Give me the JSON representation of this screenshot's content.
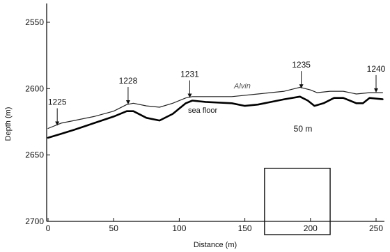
{
  "chart_data": {
    "type": "line",
    "title": "",
    "xlabel": "Distance (m)",
    "ylabel": "Depth (m)",
    "xlim": [
      0,
      255
    ],
    "ylim": [
      2700,
      2545
    ],
    "y_inverted": true,
    "x_ticks": [
      0,
      50,
      100,
      150,
      200,
      250
    ],
    "y_ticks": [
      2550,
      2600,
      2650,
      2700
    ],
    "grid": false,
    "series": [
      {
        "name": "Alvin",
        "color": "#222222",
        "x": [
          0,
          10,
          20,
          35,
          50,
          60,
          65,
          75,
          85,
          95,
          105,
          110,
          120,
          140,
          160,
          180,
          192,
          200,
          205,
          215,
          225,
          235,
          245,
          255
        ],
        "y": [
          2630,
          2626,
          2624,
          2621,
          2617,
          2612,
          2611,
          2613,
          2614,
          2611,
          2607,
          2606,
          2606,
          2606,
          2604,
          2602,
          2599,
          2601,
          2603,
          2602,
          2602,
          2604,
          2603,
          2603
        ]
      },
      {
        "name": "sea floor",
        "color": "#000000",
        "x": [
          0,
          10,
          20,
          35,
          50,
          60,
          65,
          75,
          85,
          95,
          105,
          110,
          120,
          140,
          150,
          160,
          180,
          192,
          198,
          203,
          210,
          218,
          225,
          235,
          240,
          245,
          255
        ],
        "y": [
          2637,
          2634,
          2631,
          2626,
          2621,
          2617,
          2617,
          2622,
          2624,
          2619,
          2611,
          2609,
          2610,
          2611,
          2613,
          2612,
          2608,
          2606,
          2609,
          2613,
          2611,
          2607,
          2607,
          2611,
          2611,
          2607,
          2608
        ]
      }
    ],
    "annotations": [
      {
        "label": "1225",
        "x": 7,
        "y_tip": 2630
      },
      {
        "label": "1228",
        "x": 61,
        "y_tip": 2614
      },
      {
        "label": "1231",
        "x": 108,
        "y_tip": 2609
      },
      {
        "label": "1235",
        "x": 193,
        "y_tip": 2602
      },
      {
        "label": "1240",
        "x": 250,
        "y_tip": 2605
      }
    ],
    "scale_box": {
      "label": "50 m",
      "x": [
        165,
        215
      ],
      "y": [
        2660,
        2710
      ]
    }
  }
}
